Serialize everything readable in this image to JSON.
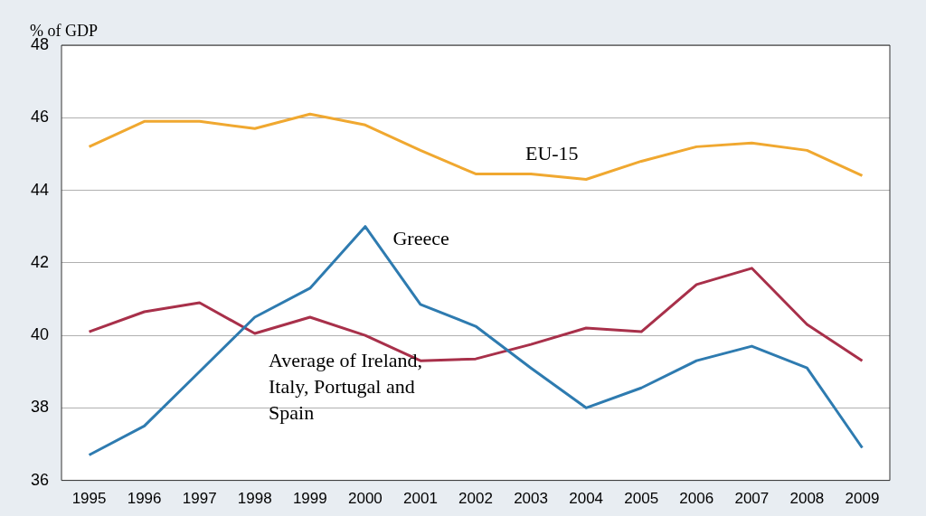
{
  "chart_data": {
    "type": "line",
    "ylabel": "% of GDP",
    "categories": [
      "1995",
      "1996",
      "1997",
      "1998",
      "1999",
      "2000",
      "2001",
      "2002",
      "2003",
      "2004",
      "2005",
      "2006",
      "2007",
      "2008",
      "2009"
    ],
    "series": [
      {
        "name": "EU-15",
        "color": "#f0a830",
        "values": [
          45.2,
          45.9,
          45.9,
          45.7,
          46.1,
          45.8,
          45.1,
          44.45,
          44.45,
          44.3,
          44.8,
          45.2,
          45.3,
          45.1,
          44.4
        ]
      },
      {
        "name": "Greece",
        "color": "#2e7bb0",
        "values": [
          36.7,
          37.5,
          39.0,
          40.5,
          41.3,
          43.0,
          40.85,
          40.25,
          39.1,
          38.0,
          38.55,
          39.3,
          39.7,
          39.1,
          36.9
        ]
      },
      {
        "name": "Average of Ireland, Italy, Portugal and Spain",
        "color": "#a8304a",
        "values": [
          40.1,
          40.65,
          40.9,
          40.05,
          40.5,
          40.0,
          39.3,
          39.35,
          39.75,
          40.2,
          40.1,
          41.4,
          41.85,
          40.3,
          39.3
        ]
      }
    ],
    "ylim": [
      36,
      48
    ],
    "yticks": [
      36,
      38,
      40,
      42,
      44,
      46,
      48
    ],
    "grid": "y",
    "legend": false,
    "marker": "none",
    "line_style": "solid"
  }
}
